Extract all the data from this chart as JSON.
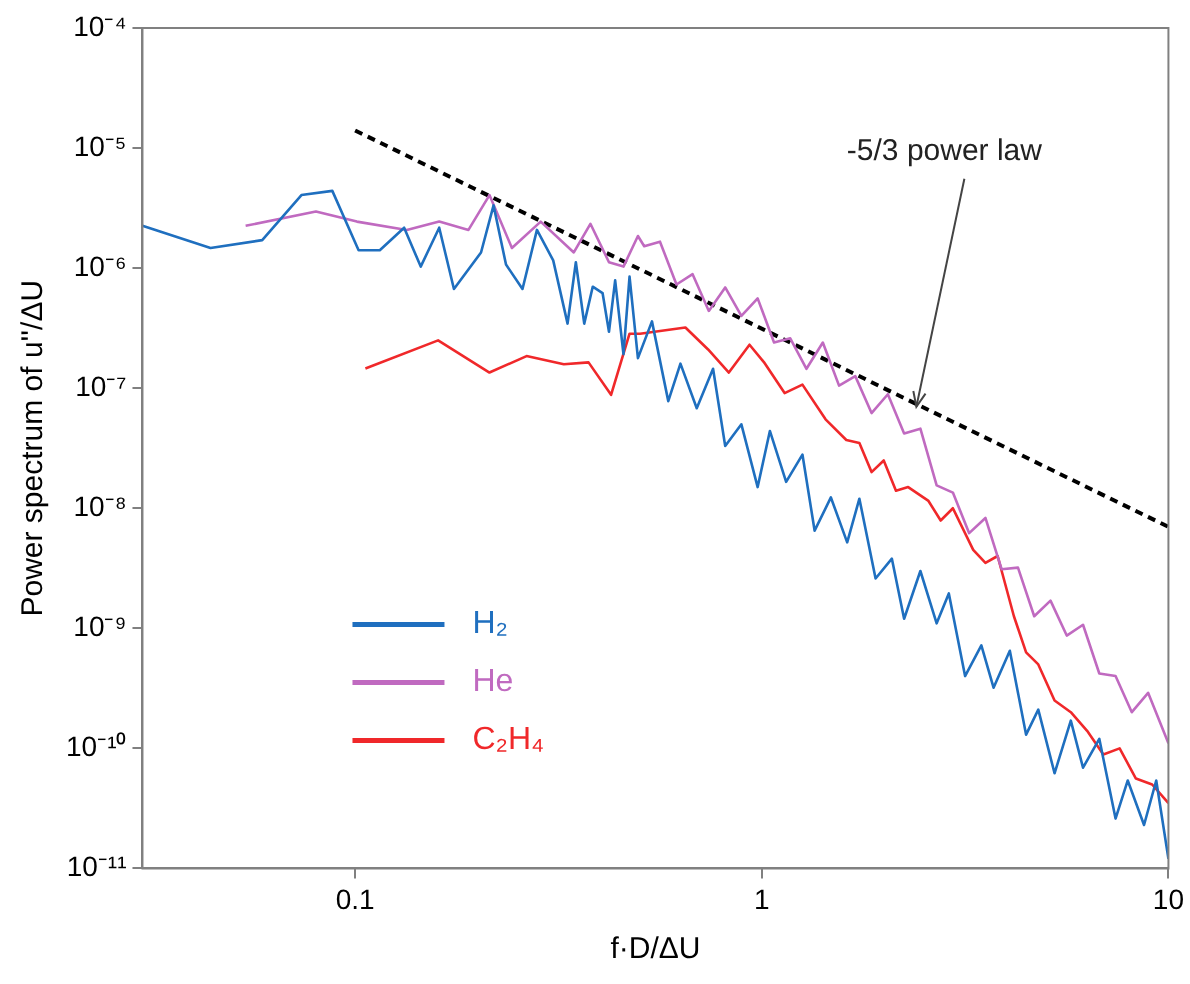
{
  "chart_data": {
    "type": "line",
    "xlabel": "f·D/ΔU",
    "ylabel": "Power spectrum of u''/ΔU",
    "log": "xy",
    "grid": false,
    "marker": "none",
    "legend": "bottom left",
    "xlim": [
      0.03,
      10
    ],
    "xticks": [
      0.1,
      1,
      10
    ],
    "ylim": [
      1e-11,
      0.0001
    ],
    "yticks": [
      {
        "value": 1e-11,
        "label": "10⁻¹¹"
      },
      {
        "value": 1e-10,
        "label": "10⁻¹⁰"
      },
      {
        "value": 1e-09,
        "label": "10⁻⁹"
      },
      {
        "value": 1e-08,
        "label": "10⁻⁸"
      },
      {
        "value": 1e-07,
        "label": "10⁻⁷"
      },
      {
        "value": 1e-06,
        "label": "10⁻⁶"
      },
      {
        "value": 1e-05,
        "label": "10⁻⁵"
      },
      {
        "value": 0.0001,
        "label": "10⁻⁴"
      }
    ],
    "annotations": [
      {
        "text": "-5/3 power law",
        "x": 2.4,
        "y": 7e-08
      }
    ],
    "series": [
      {
        "name": "H₂",
        "color": "#1f6fbf",
        "x": [
          0.03,
          0.0441,
          0.0591,
          0.0738,
          0.0879,
          0.102,
          0.115,
          0.132,
          0.145,
          0.161,
          0.175,
          0.204,
          0.219,
          0.235,
          0.258,
          0.28,
          0.307,
          0.333,
          0.349,
          0.366,
          0.384,
          0.406,
          0.421,
          0.436,
          0.457,
          0.473,
          0.496,
          0.537,
          0.589,
          0.631,
          0.692,
          0.759,
          0.813,
          0.891,
          0.977,
          1.047,
          1.148,
          1.259,
          1.349,
          1.479,
          1.622,
          1.738,
          1.905,
          2.089,
          2.239,
          2.455,
          2.692,
          2.884,
          3.162,
          3.467,
          3.715,
          4.074,
          4.467,
          4.786,
          5.248,
          5.754,
          6.166,
          6.761,
          7.413,
          7.943,
          8.71,
          9.333,
          10
        ],
        "values": [
          2.25e-06,
          1.47e-06,
          1.71e-06,
          4.06e-06,
          4.4e-06,
          1.41e-06,
          1.41e-06,
          2.17e-06,
          1.03e-06,
          2.17e-06,
          6.7e-07,
          1.35e-06,
          3.33e-06,
          1.07e-06,
          6.7e-07,
          2.08e-06,
          1.16e-06,
          3.45e-07,
          1.12e-06,
          3.45e-07,
          7e-07,
          6.2e-07,
          2.95e-07,
          7.9e-07,
          1.92e-07,
          8.5e-07,
          1.78e-07,
          3.6e-07,
          7.8e-08,
          1.6e-07,
          6.8e-08,
          1.45e-07,
          3.3e-08,
          5e-08,
          1.5e-08,
          4.4e-08,
          1.66e-08,
          2.8e-08,
          6.5e-09,
          1.23e-08,
          5.2e-09,
          1.2e-08,
          2.6e-09,
          3.8e-09,
          1.2e-09,
          3e-09,
          1.1e-09,
          1.95e-09,
          4e-10,
          7.2e-10,
          3.2e-10,
          6.5e-10,
          1.3e-10,
          2.1e-10,
          6.2e-11,
          1.7e-10,
          6.9e-11,
          1.2e-10,
          2.6e-11,
          5.4e-11,
          2.3e-11,
          5.4e-11,
          1.2e-11
        ]
      },
      {
        "name": "He",
        "color": "#c06ac0",
        "x": [
          0.0538,
          0.0801,
          0.101,
          0.134,
          0.161,
          0.19,
          0.214,
          0.243,
          0.286,
          0.345,
          0.379,
          0.421,
          0.457,
          0.496,
          0.514,
          0.562,
          0.617,
          0.676,
          0.741,
          0.813,
          0.891,
          0.977,
          1.072,
          1.175,
          1.288,
          1.413,
          1.549,
          1.698,
          1.862,
          2.042,
          2.239,
          2.455,
          2.692,
          2.951,
          3.236,
          3.548,
          3.89,
          4.266,
          4.677,
          5.129,
          5.623,
          6.166,
          6.761,
          7.413,
          8.128,
          8.913,
          10
        ],
        "values": [
          2.25e-06,
          2.96e-06,
          2.44e-06,
          2.08e-06,
          2.44e-06,
          2.08e-06,
          4.06e-06,
          1.47e-06,
          2.44e-06,
          1.35e-06,
          2.34e-06,
          1.12e-06,
          1.03e-06,
          1.85e-06,
          1.52e-06,
          1.66e-06,
          7.3e-07,
          8.9e-07,
          4.4e-07,
          6.9e-07,
          4e-07,
          5.6e-07,
          2.4e-07,
          2.6e-07,
          1.45e-07,
          2.4e-07,
          1.05e-07,
          1.26e-07,
          6.2e-08,
          8.9e-08,
          4.2e-08,
          4.6e-08,
          1.55e-08,
          1.35e-08,
          6.2e-09,
          8.3e-09,
          3.1e-09,
          3.2e-09,
          1.26e-09,
          1.7e-09,
          8.7e-10,
          1.07e-09,
          4.2e-10,
          4e-10,
          2e-10,
          2.9e-10,
          1.1e-10
        ]
      },
      {
        "name": "C₂H₄",
        "color": "#f0282a",
        "x": [
          0.106,
          0.16,
          0.214,
          0.264,
          0.326,
          0.375,
          0.426,
          0.473,
          0.502,
          0.649,
          0.738,
          0.83,
          0.933,
          1.012,
          1.138,
          1.259,
          1.435,
          1.614,
          1.738,
          1.862,
          1.995,
          2.138,
          2.291,
          2.57,
          2.754,
          2.951,
          3.311,
          3.548,
          3.802,
          4.169,
          4.467,
          4.786,
          5.248,
          5.754,
          6.31,
          6.918,
          7.586,
          8.318,
          9.12,
          10
        ],
        "values": [
          1.46e-07,
          2.5e-07,
          1.35e-07,
          1.85e-07,
          1.58e-07,
          1.64e-07,
          8.8e-08,
          2.84e-07,
          2.84e-07,
          3.2e-07,
          2.1e-07,
          1.35e-07,
          2.3e-07,
          1.65e-07,
          9.1e-08,
          1.07e-07,
          5.5e-08,
          3.7e-08,
          3.5e-08,
          2e-08,
          2.5e-08,
          1.4e-08,
          1.5e-08,
          1.15e-08,
          7.9e-09,
          1e-08,
          4.5e-09,
          3.5e-09,
          4e-09,
          1.26e-09,
          6.3e-10,
          5e-10,
          2.5e-10,
          2e-10,
          1.4e-10,
          8.9e-11,
          1e-10,
          5.6e-11,
          5e-11,
          3.5e-11
        ]
      },
      {
        "color": "#000000",
        "line_style": "dashed",
        "x": [
          0.1,
          10
        ],
        "values": [
          1.4e-05,
          7e-09
        ]
      }
    ]
  }
}
